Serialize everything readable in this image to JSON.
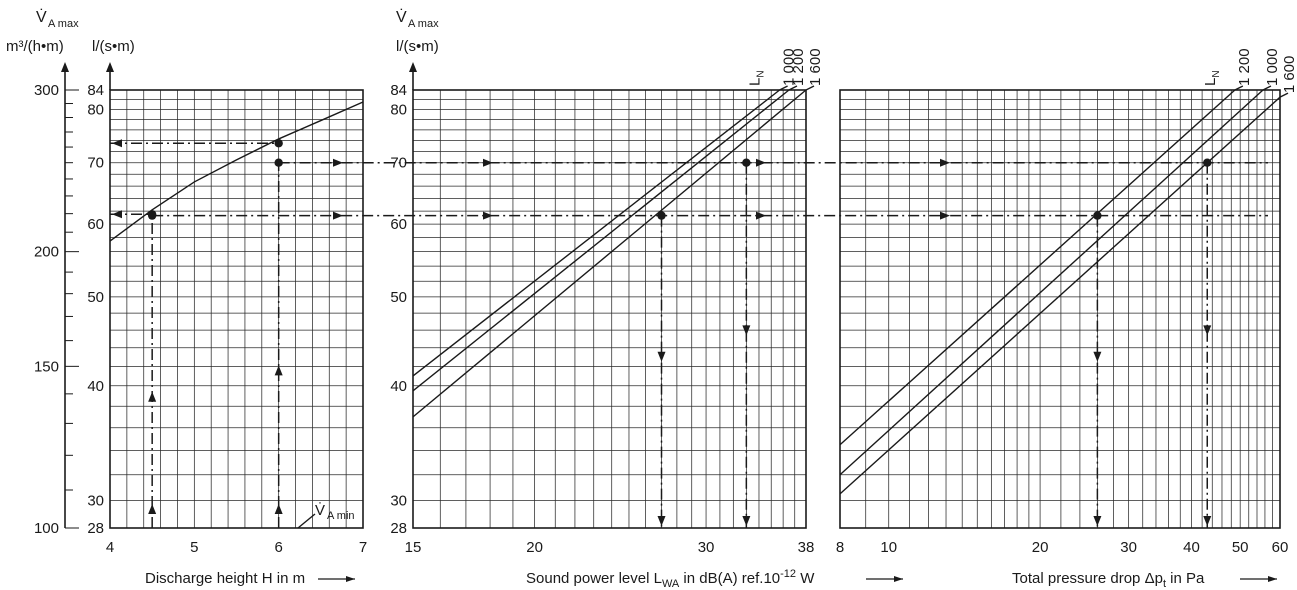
{
  "chart_data": {
    "type": "line",
    "left_axis": {
      "label_symbol": "V̇",
      "label_sub": "A max",
      "units_m3": "m³/(h•m)",
      "units_ls": "l/(s•m)",
      "m3_ticks": [
        "300",
        "200",
        "150",
        "100"
      ],
      "ls_ticks": [
        "84",
        "80",
        "70",
        "60",
        "50",
        "40",
        "30",
        "28"
      ],
      "range_ls": [
        28,
        84
      ]
    },
    "middle_axis": {
      "label_symbol": "V̇",
      "label_sub": "A max",
      "units_ls": "l/(s•m)",
      "ls_ticks": [
        "84",
        "80",
        "70",
        "60",
        "50",
        "40",
        "30",
        "28"
      ]
    },
    "panels": [
      {
        "id": "discharge",
        "xlabel": "Discharge height H in m",
        "x_range": [
          4,
          7
        ],
        "x_ticks": [
          "4",
          "5",
          "6",
          "7"
        ],
        "series": [
          {
            "x": [
              4,
              4.5,
              5,
              5.5,
              6,
              6.5,
              7
            ],
            "y": [
              57.5,
              62.2,
              66.7,
              70.5,
              74.3,
              77.8,
              81.5
            ]
          }
        ],
        "vmin_label": {
          "symbol": "V̇",
          "sub": "A min"
        }
      },
      {
        "id": "sound",
        "xlabel_pre": "Sound power level L",
        "xlabel_sub": "WA",
        "xlabel_mid": " in dB(A) ref.10",
        "xlabel_sup": "-12",
        "xlabel_post": " W",
        "x_range": [
          15,
          38
        ],
        "x_ticks": [
          "15",
          "20",
          "30",
          "38"
        ],
        "ln_label": "L",
        "ln_sub": "N",
        "series": [
          {
            "name": "1 000",
            "x": [
              15,
              35.7
            ],
            "y": [
              41,
              84
            ]
          },
          {
            "name": "1 200",
            "x": [
              15,
              36.5
            ],
            "y": [
              39.5,
              84
            ]
          },
          {
            "name": "1 600",
            "x": [
              15,
              38
            ],
            "y": [
              37,
              84
            ]
          }
        ]
      },
      {
        "id": "pressure",
        "xlabel_pre": "Total pressure drop ",
        "xlabel_delta": "Δp",
        "xlabel_sub": "t",
        "xlabel_post": " in Pa",
        "x_range": [
          8,
          60
        ],
        "x_ticks": [
          "8",
          "10",
          "20",
          "30",
          "40",
          "50",
          "60"
        ],
        "ln_label": "L",
        "ln_sub": "N",
        "series": [
          {
            "name": "1 200",
            "x": [
              8,
              48.8
            ],
            "y": [
              34.5,
              84
            ]
          },
          {
            "name": "1 000",
            "x": [
              8,
              55.5
            ],
            "y": [
              32,
              84
            ]
          },
          {
            "name": "1 600",
            "x": [
              8,
              60
            ],
            "y": [
              30.5,
              82.5
            ]
          }
        ]
      }
    ],
    "examples": [
      {
        "H": 4.5,
        "vmax": 61.3,
        "lwa": 27,
        "dp": 26
      },
      {
        "H": 6,
        "vmax": 70,
        "lwa": 33,
        "dp": 43
      }
    ]
  }
}
